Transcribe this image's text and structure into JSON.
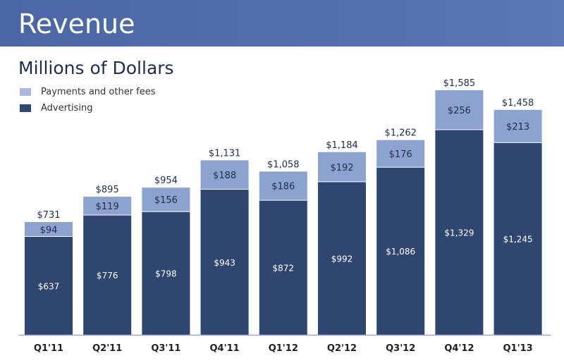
{
  "chart_data": {
    "type": "bar",
    "stacked": true,
    "title": "Revenue",
    "subtitle": "Millions of Dollars",
    "categories": [
      "Q1'11",
      "Q2'11",
      "Q3'11",
      "Q4'11",
      "Q1'12",
      "Q2'12",
      "Q3'12",
      "Q4'12",
      "Q1'13"
    ],
    "series": [
      {
        "name": "Advertising",
        "color": "#2f4670",
        "values": [
          637,
          776,
          798,
          943,
          872,
          992,
          1086,
          1329,
          1245
        ],
        "labels": [
          "$637",
          "$776",
          "$798",
          "$943",
          "$872",
          "$992",
          "$1,086",
          "$1,329",
          "$1,245"
        ]
      },
      {
        "name": "Payments and other fees",
        "color": "#8ea2cf",
        "values": [
          94,
          119,
          156,
          188,
          186,
          192,
          176,
          256,
          213
        ],
        "labels": [
          "$94",
          "$119",
          "$156",
          "$188",
          "$186",
          "$192",
          "$176",
          "$256",
          "$213"
        ]
      }
    ],
    "totals": [
      731,
      895,
      954,
      1131,
      1058,
      1184,
      1262,
      1585,
      1458
    ],
    "total_labels": [
      "$731",
      "$895",
      "$954",
      "$1,131",
      "$1,058",
      "$1,184",
      "$1,262",
      "$1,585",
      "$1,458"
    ],
    "legend_position": "top-left",
    "grid": false,
    "ylim": [
      0,
      1600
    ]
  },
  "colors": {
    "header": "#4e6aa8"
  }
}
